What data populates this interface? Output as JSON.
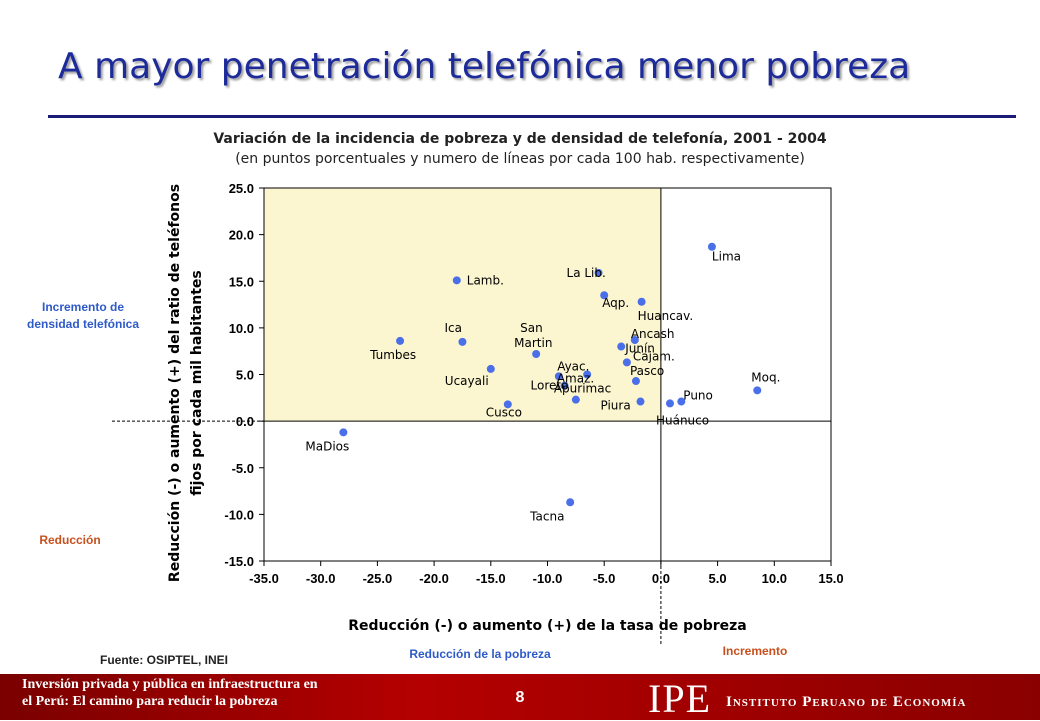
{
  "slide": {
    "title": "A mayor penetración telefónica menor pobreza",
    "page_number": "8",
    "footer_text_line1": "Inversión privada y pública en infraestructura en",
    "footer_text_line2": "el Perú: El camino para reducir la pobreza",
    "logo_mark": "IPE",
    "logo_name": "Instituto Peruano de Economía"
  },
  "annotations": {
    "increment_density": "Incremento de densidad telefónica",
    "reduction": "Reducción",
    "poverty_reduction": "Reducción de la pobreza",
    "increment": "Incremento",
    "source": "Fuente: OSIPTEL, INEI"
  },
  "colors": {
    "title": "#1c2a9a",
    "point": "#4a6fe8",
    "quadrant_fill": "#fbf6d0",
    "label_blue": "#2e5ac8",
    "label_orange": "#c8501e",
    "footer_bg": "#9a0000"
  },
  "chart_data": {
    "type": "scatter",
    "title": "Variación de la incidencia de pobreza y de densidad de telefonía, 2001 - 2004",
    "subtitle": "(en puntos porcentuales y numero de líneas por cada 100 hab. respectivamente)",
    "xlabel": "Reducción (-) o aumento (+) de la tasa de pobreza",
    "ylabel_line1": "Reducción (-) o aumento (+) del ratio de teléfonos",
    "ylabel_line2": "fijos por cada mil habitantes",
    "xlim": [
      -35,
      15
    ],
    "ylim": [
      -15,
      25
    ],
    "x_ticks": [
      "-35.0",
      "-30.0",
      "-25.0",
      "-20.0",
      "-15.0",
      "-10.0",
      "-5.0",
      "0.0",
      "5.0",
      "10.0",
      "15.0"
    ],
    "y_ticks": [
      "25.0",
      "20.0",
      "15.0",
      "10.0",
      "5.0",
      "0.0",
      "-5.0",
      "-10.0",
      "-15.0"
    ],
    "highlight_quadrant": {
      "x": [
        -35,
        0
      ],
      "y": [
        0,
        25
      ]
    },
    "points": [
      {
        "label": "Lima",
        "x": 4.5,
        "y": 18.7
      },
      {
        "label": "La Lib.",
        "x": -5.5,
        "y": 15.9
      },
      {
        "label": "Lamb.",
        "x": -18,
        "y": 15.1
      },
      {
        "label": "Aqp.",
        "x": -5,
        "y": 13.5
      },
      {
        "label": "Huancav.",
        "x": -1.7,
        "y": 12.8
      },
      {
        "label": "Ancash",
        "x": -2.3,
        "y": 8.7
      },
      {
        "label": "Tumbes",
        "x": -23,
        "y": 8.6
      },
      {
        "label": "Ica",
        "x": -17.5,
        "y": 8.5
      },
      {
        "label": "Junín",
        "x": -3.5,
        "y": 8.0
      },
      {
        "label": "San Martin",
        "x": -11,
        "y": 7.2
      },
      {
        "label": "Cajam.",
        "x": -3,
        "y": 6.3
      },
      {
        "label": "Ucayali",
        "x": -15,
        "y": 5.6
      },
      {
        "label": "Ayac.",
        "x": -6.5,
        "y": 5.0
      },
      {
        "label": "Amaz.",
        "x": -9,
        "y": 4.8
      },
      {
        "label": "Pasco",
        "x": -2.2,
        "y": 4.3
      },
      {
        "label": "Loreto",
        "x": -8.5,
        "y": 3.8
      },
      {
        "label": "Moq.",
        "x": 8.5,
        "y": 3.3
      },
      {
        "label": "Apurimac",
        "x": -7.5,
        "y": 2.3
      },
      {
        "label": "Piura",
        "x": -1.8,
        "y": 2.1
      },
      {
        "label": "Puno",
        "x": 1.8,
        "y": 2.1
      },
      {
        "label": "Cusco",
        "x": -13.5,
        "y": 1.8
      },
      {
        "label": "Huánuco",
        "x": 0.8,
        "y": 1.9
      },
      {
        "label": "MaDios",
        "x": -28,
        "y": -1.2
      },
      {
        "label": "Tacna",
        "x": -8,
        "y": -8.7
      }
    ]
  }
}
